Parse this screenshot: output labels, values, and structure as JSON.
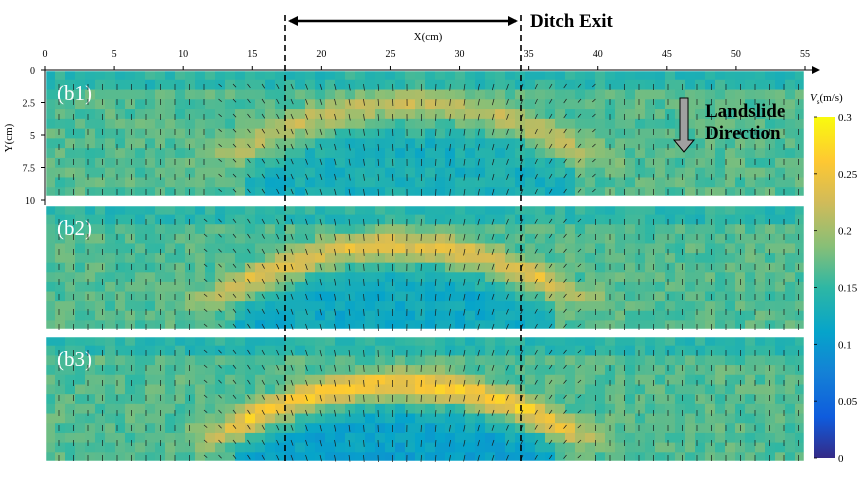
{
  "chart_data": {
    "type": "heatmap",
    "x_axis_title": "X(cm)",
    "y_axis_title": "Y(cm)",
    "x_ticks": [
      0,
      5,
      10,
      15,
      20,
      25,
      30,
      35,
      40,
      45,
      50,
      55
    ],
    "y_ticks": [
      0,
      2.5,
      5,
      7.5,
      10
    ],
    "xlim": [
      0,
      55
    ],
    "ylim": [
      0,
      10
    ],
    "panels": [
      {
        "label": "(b1)",
        "peak": 0.22,
        "arch_center_x": 26.5,
        "arch_half_width": 13,
        "arch_top_y": 2.6,
        "arch_base_y": 6.8,
        "low_band": 0.13
      },
      {
        "label": "(b2)",
        "peak": 0.245,
        "arch_center_x": 25.5,
        "arch_half_width": 13,
        "arch_top_y": 3.2,
        "arch_base_y": 7.4,
        "low_band": 0.12
      },
      {
        "label": "(b3)",
        "peak": 0.27,
        "arch_center_x": 25.5,
        "arch_half_width": 13,
        "arch_top_y": 3.8,
        "arch_base_y": 7.8,
        "low_band": 0.11
      }
    ],
    "ditch_exit": {
      "label": "Ditch Exit",
      "x_start": 17.2,
      "x_end": 34.2
    },
    "colorbar": {
      "title": "Vs(m/s)",
      "title_main": "V",
      "title_sub": "s",
      "title_unit": "(m/s)",
      "range": [
        0,
        0.3
      ],
      "ticks": [
        0,
        0.05,
        0.1,
        0.15,
        0.2,
        0.25,
        0.3
      ],
      "colormap": "parula"
    },
    "annotation": {
      "line1": "Landslide",
      "line2": "Direction"
    }
  },
  "colors": {
    "dashed_line": "#000000",
    "panel_border": "#ffffff",
    "arrow_fill": "#a0a0a0"
  }
}
